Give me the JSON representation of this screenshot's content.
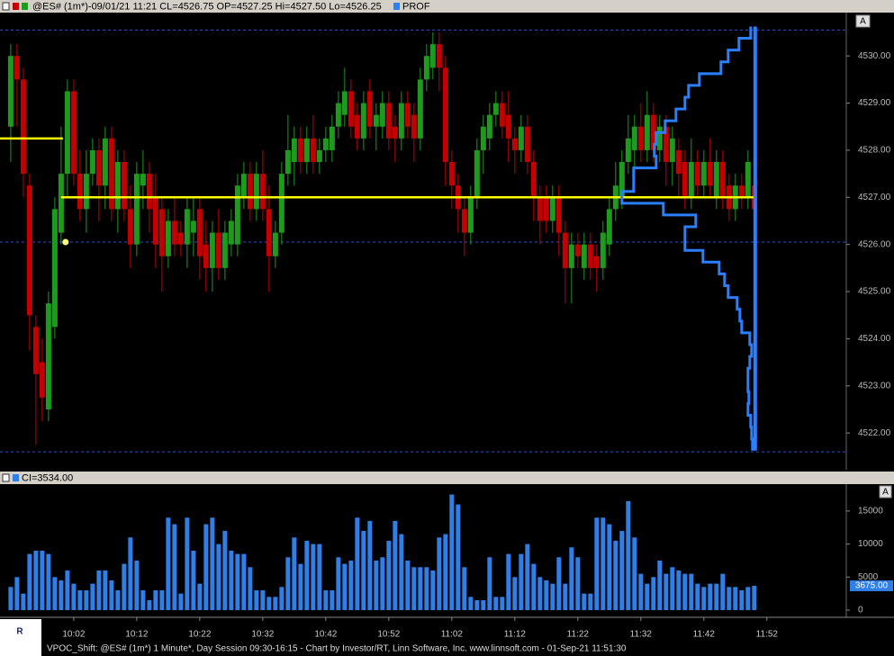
{
  "chart_data": {
    "type": "candlestick",
    "header": "@ES# (1m*)-09/01/21 11:21 CL=4526.75 OP=4527.25 Hi=4527.50 Lo=4526.25",
    "overlay_name": "PROF",
    "footer": "VPOC_Shift: @ES# (1m*) 1 Minute*, Day Session 09:30-16:15 - Chart by Investor/RT, Linn Software, Inc. www.linnsoft.com - 01-Sep-21 11:51:30",
    "up_color": "#1e9a1e",
    "down_color": "#c40000",
    "x": [
      592,
      593,
      594,
      595,
      596,
      597,
      598,
      599,
      600,
      601,
      602,
      603,
      604,
      605,
      606,
      607,
      608,
      609,
      610,
      611,
      612,
      613,
      614,
      615,
      616,
      617,
      618,
      619,
      620,
      621,
      622,
      623,
      624,
      625,
      626,
      627,
      628,
      629,
      630,
      631,
      632,
      633,
      634,
      635,
      636,
      637,
      638,
      639,
      640,
      641,
      642,
      643,
      644,
      645,
      646,
      647,
      648,
      649,
      650,
      651,
      652,
      653,
      654,
      655,
      656,
      657,
      658,
      659,
      660,
      661,
      662,
      663,
      664,
      665,
      666,
      667,
      668,
      669,
      670,
      671,
      672,
      673,
      674,
      675,
      676,
      677,
      678,
      679,
      680,
      681,
      682,
      683,
      684,
      685,
      686,
      687,
      688,
      689,
      690,
      691,
      692,
      693,
      694,
      695,
      696,
      697,
      698,
      699,
      700,
      701,
      702,
      703,
      704,
      705,
      706,
      707,
      708,
      709,
      710
    ],
    "open": [
      4528.5,
      4530,
      4529.5,
      4527.25,
      4524.25,
      4523.5,
      4522.5,
      4524.25,
      4526.25,
      4527.5,
      4529.25,
      4527.5,
      4526.75,
      4527.5,
      4528,
      4527.25,
      4528.25,
      4526.75,
      4527.75,
      4526.75,
      4526,
      4527.25,
      4527.5,
      4527,
      4526.75,
      4525.75,
      4526.5,
      4526.25,
      4526,
      4526.25,
      4526.75,
      4526,
      4525.5,
      4526.25,
      4525.5,
      4526,
      4526,
      4527,
      4527.5,
      4526.75,
      4527.5,
      4526.75,
      4525.75,
      4526.25,
      4527.5,
      4527.75,
      4528.25,
      4527.75,
      4528.25,
      4527.75,
      4528,
      4528,
      4528.5,
      4528.75,
      4529.25,
      4528.75,
      4528.25,
      4529.25,
      4528.5,
      4528.5,
      4529,
      4528.5,
      4528.25,
      4529,
      4528.75,
      4528.25,
      4529.5,
      4529.75,
      4530.25,
      4529.75,
      4527.75,
      4527.25,
      4526.75,
      4526.25,
      4527,
      4528,
      4528.25,
      4528.75,
      4529,
      4528.75,
      4528.25,
      4528,
      4528.5,
      4527.75,
      4527,
      4527,
      4526.5,
      4527,
      4526.25,
      4525.5,
      4526,
      4525.5,
      4526,
      4525.75,
      4525.5,
      4526,
      4526.75,
      4527,
      4527.75,
      4528,
      4528.5,
      4528,
      4528.75,
      4528,
      4528.5,
      4527.75,
      4528,
      4527.75,
      4527,
      4527.75,
      4527.25,
      4527.75,
      4527,
      4527.75,
      4527.25,
      4526.75,
      4527.25,
      4527,
      4527.25
    ],
    "high": [
      4530.25,
      4530.25,
      4529.75,
      4527.5,
      4524.5,
      4524,
      4525,
      4527,
      4528.5,
      4529.5,
      4529.5,
      4528,
      4528,
      4528.25,
      4528.25,
      4528.5,
      4528.5,
      4528,
      4528,
      4527.25,
      4527.75,
      4528,
      4527.75,
      4527.5,
      4527,
      4526.75,
      4527,
      4526.5,
      4527,
      4527,
      4527,
      4526.5,
      4526.5,
      4526.75,
      4526.5,
      4526.75,
      4527.5,
      4527.75,
      4527.75,
      4527.75,
      4528,
      4527.25,
      4526.5,
      4527.75,
      4528.75,
      4528.5,
      4528.5,
      4528.5,
      4528.75,
      4528.25,
      4528.5,
      4528.75,
      4529.25,
      4529.75,
      4529.5,
      4529,
      4529.25,
      4529.5,
      4529,
      4529.25,
      4529.25,
      4528.75,
      4529.25,
      4529.25,
      4529,
      4529.75,
      4530.25,
      4530.5,
      4530.5,
      4530,
      4528,
      4527.5,
      4527,
      4527.25,
      4528.25,
      4528.75,
      4529,
      4529.25,
      4529.25,
      4529.25,
      4528.5,
      4528.75,
      4528.75,
      4528,
      4527.25,
      4527.25,
      4527.25,
      4527.25,
      4526.5,
      4526.25,
      4526.25,
      4526.25,
      4526.25,
      4526,
      4526.5,
      4527,
      4527.75,
      4528,
      4528.75,
      4528.75,
      4529,
      4529.25,
      4529,
      4528.75,
      4528.75,
      4528.5,
      4528.25,
      4528,
      4528.25,
      4528,
      4528,
      4528.25,
      4528,
      4528,
      4527.5,
      4527.5,
      4527.5,
      4528,
      4527.5
    ],
    "low": [
      4527.75,
      4528.5,
      4527,
      4523.75,
      4521.75,
      4522.25,
      4522.25,
      4524,
      4526,
      4527,
      4527.25,
      4526.5,
      4526.25,
      4527.25,
      4526.5,
      4526.75,
      4526.5,
      4526.25,
      4526.5,
      4525.5,
      4525.75,
      4526.75,
      4526.25,
      4525.5,
      4525,
      4525.5,
      4525.75,
      4525.75,
      4525.5,
      4525.75,
      4525.25,
      4525,
      4525,
      4525.25,
      4525.25,
      4525.75,
      4525.75,
      4526.75,
      4526.5,
      4526.5,
      4526.5,
      4525,
      4525.5,
      4526,
      4527.25,
      4527.25,
      4527.5,
      4527.5,
      4527.5,
      4527.5,
      4527.75,
      4527.75,
      4528.25,
      4528.5,
      4528.25,
      4528,
      4528,
      4528.25,
      4528,
      4528.25,
      4528,
      4527.75,
      4528,
      4528.25,
      4527.75,
      4528,
      4529.25,
      4529.5,
      4529.25,
      4527.25,
      4526.75,
      4526.25,
      4525.75,
      4526,
      4526.75,
      4527.5,
      4528,
      4528.5,
      4528.25,
      4527.75,
      4527.5,
      4527.75,
      4527.5,
      4526.5,
      4526,
      4526.25,
      4526.25,
      4525.75,
      4524.75,
      4524.75,
      4525.5,
      4525.25,
      4525.25,
      4525,
      4525.25,
      4525.75,
      4526.5,
      4526.75,
      4527.5,
      4527.5,
      4527.75,
      4527.75,
      4527.75,
      4527.75,
      4527.25,
      4527.25,
      4527,
      4526.75,
      4526.75,
      4527,
      4527,
      4527,
      4526.75,
      4526.75,
      4526.5,
      4526.5,
      4526.75,
      4526.75,
      4526.25
    ],
    "close": [
      4530,
      4529.5,
      4527.5,
      4524.5,
      4523.25,
      4522.75,
      4524.75,
      4526.75,
      4527.5,
      4529.25,
      4527.5,
      4526.75,
      4527.5,
      4528,
      4527.25,
      4528.25,
      4526.75,
      4527.75,
      4526.75,
      4526,
      4527.5,
      4527.5,
      4526.75,
      4526,
      4525.75,
      4526.5,
      4526,
      4526,
      4526.75,
      4526.5,
      4525.75,
      4525.5,
      4526.25,
      4525.5,
      4526.25,
      4526.5,
      4527.25,
      4527.5,
      4526.75,
      4527.5,
      4526.75,
      4525.75,
      4526.25,
      4527.5,
      4528,
      4528.25,
      4527.75,
      4528.25,
      4527.75,
      4528,
      4528.25,
      4528.5,
      4529,
      4529.25,
      4528.5,
      4528.25,
      4529,
      4528.5,
      4528.75,
      4529,
      4528.25,
      4528.25,
      4529,
      4528.5,
      4528.25,
      4529.5,
      4530,
      4530.25,
      4529.75,
      4527.75,
      4527.25,
      4526.75,
      4526.25,
      4527,
      4528,
      4528.5,
      4528.75,
      4529,
      4528.5,
      4528.25,
      4528,
      4528.5,
      4527.75,
      4527,
      4526.5,
      4526.5,
      4527,
      4526.25,
      4525.5,
      4526,
      4525.75,
      4526,
      4525.5,
      4525.5,
      4526.25,
      4526.75,
      4527.25,
      4527.75,
      4528.25,
      4528.5,
      4528,
      4528.75,
      4528,
      4528.5,
      4527.75,
      4528.25,
      4527.5,
      4527,
      4527.75,
      4527.25,
      4527.75,
      4527.25,
      4527.75,
      4527,
      4526.75,
      4527.25,
      4527,
      4527.75,
      4526.75
    ],
    "xlim": [
      590.3,
      724.6
    ],
    "xticks": [
      {
        "value": 602,
        "label": "10:02"
      },
      {
        "value": 612,
        "label": "10:12"
      },
      {
        "value": 622,
        "label": "10:22"
      },
      {
        "value": 632,
        "label": "10:32"
      },
      {
        "value": 642,
        "label": "10:42"
      },
      {
        "value": 652,
        "label": "10:52"
      },
      {
        "value": 662,
        "label": "11:02"
      },
      {
        "value": 672,
        "label": "11:12"
      },
      {
        "value": 682,
        "label": "11:22"
      },
      {
        "value": 692,
        "label": "11:32"
      },
      {
        "value": 702,
        "label": "11:42"
      },
      {
        "value": 712,
        "label": "11:52"
      }
    ],
    "ylim": [
      4521.22,
      4530.92
    ],
    "yticks": [
      {
        "value": 4522,
        "label": "4522.00"
      },
      {
        "value": 4523,
        "label": "4523.00"
      },
      {
        "value": 4524,
        "label": "4524.00"
      },
      {
        "value": 4525,
        "label": "4525.00"
      },
      {
        "value": 4526,
        "label": "4526.00"
      },
      {
        "value": 4527,
        "label": "4527.00"
      },
      {
        "value": 4528,
        "label": "4528.00"
      },
      {
        "value": 4529,
        "label": "4529.00"
      },
      {
        "value": 4530,
        "label": "4530.00"
      }
    ],
    "dashed_levels": [
      4530.55,
      4526.05,
      4521.6
    ],
    "vpoc_color": "#ffff00",
    "vpoc": [
      {
        "price": 4528.25,
        "from": 590.3,
        "to": 600
      },
      {
        "price": 4527,
        "from": 600,
        "to": 710
      }
    ],
    "vpoc_marker": {
      "x": 600.7,
      "price": 4526.05
    },
    "profile": {
      "color": "#2a7fff",
      "x": 710,
      "prices": [
        4530.5,
        4530.25,
        4530,
        4529.75,
        4529.5,
        4529.25,
        4529,
        4528.75,
        4528.5,
        4528.25,
        4528,
        4527.75,
        4527.5,
        4527.25,
        4527,
        4526.75,
        4526.5,
        4526.25,
        4526,
        4525.75,
        4525.5,
        4525.25,
        4525,
        4524.75,
        4524.5,
        4524.25,
        4524,
        4523.75,
        4523.5,
        4523.25,
        4523,
        4522.75,
        4522.5,
        4522.25,
        4522,
        4521.75
      ],
      "values": [
        5,
        18,
        30,
        38,
        62,
        74,
        78,
        88,
        100,
        110,
        112,
        110,
        135,
        135,
        148,
        102,
        66,
        78,
        78,
        58,
        40,
        34,
        30,
        20,
        17,
        15,
        6,
        4,
        6,
        8,
        8,
        7,
        8,
        5,
        4,
        3
      ]
    },
    "volume": {
      "name": "CI=3534.00",
      "color": "#2f7fe6",
      "values": [
        3500,
        5000,
        2500,
        8500,
        9000,
        9000,
        8500,
        5000,
        4500,
        6000,
        4000,
        3000,
        3000,
        4000,
        6000,
        6000,
        4500,
        3000,
        7000,
        11000,
        7500,
        3000,
        1500,
        3000,
        3000,
        14000,
        13000,
        2500,
        14000,
        9000,
        4000,
        13000,
        14000,
        10000,
        12000,
        9000,
        8500,
        8500,
        6500,
        3000,
        3000,
        2000,
        2000,
        3500,
        8000,
        11000,
        7000,
        10500,
        10000,
        10000,
        3000,
        3000,
        8000,
        7000,
        7500,
        14000,
        12000,
        13500,
        7500,
        8000,
        10500,
        13500,
        11500,
        7500,
        6500,
        6500,
        6500,
        6000,
        11000,
        11500,
        17500,
        16000,
        6500,
        2000,
        1500,
        1500,
        8000,
        2000,
        2000,
        8500,
        5000,
        8500,
        10000,
        7000,
        5000,
        4500,
        4000,
        8000,
        4000,
        9500,
        8000,
        2500,
        2500,
        14000,
        14000,
        13000,
        10500,
        12000,
        16500,
        11000,
        5500,
        4000,
        5000,
        7500,
        5500,
        6500,
        6000,
        5500,
        5500,
        4000,
        3500,
        4000,
        4000,
        5500,
        3500,
        3500,
        3000,
        3500,
        3675
      ],
      "last_label": "3675.00",
      "ylim": [
        -1090,
        19074
      ],
      "yticks": [
        0,
        5000,
        10000,
        15000
      ]
    }
  }
}
